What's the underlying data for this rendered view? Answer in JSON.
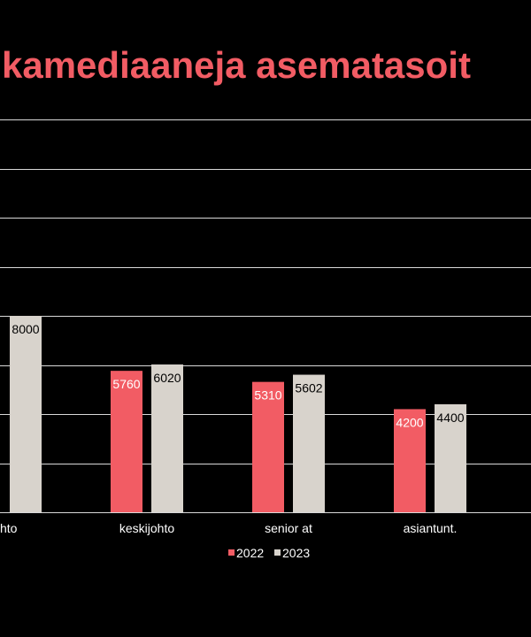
{
  "colors": {
    "background": "#000000",
    "accent": "#f25c64",
    "series_2022": "#f25c64",
    "series_2023": "#d8d3cc",
    "grid": "#d9d9d9"
  },
  "chart_data": {
    "type": "bar",
    "title": "kamediaaneja asematasoit",
    "categories": [
      "hto",
      "keskijohto",
      "senior at",
      "asiantunt."
    ],
    "series": [
      {
        "name": "2022",
        "values": [
          null,
          5760,
          5310,
          4200
        ]
      },
      {
        "name": "2023",
        "values": [
          8000,
          6020,
          5602,
          4400
        ]
      }
    ],
    "xlabel": "",
    "ylabel": "",
    "ylim": [
      0,
      16000
    ],
    "grid": true,
    "legend": "bottom"
  }
}
